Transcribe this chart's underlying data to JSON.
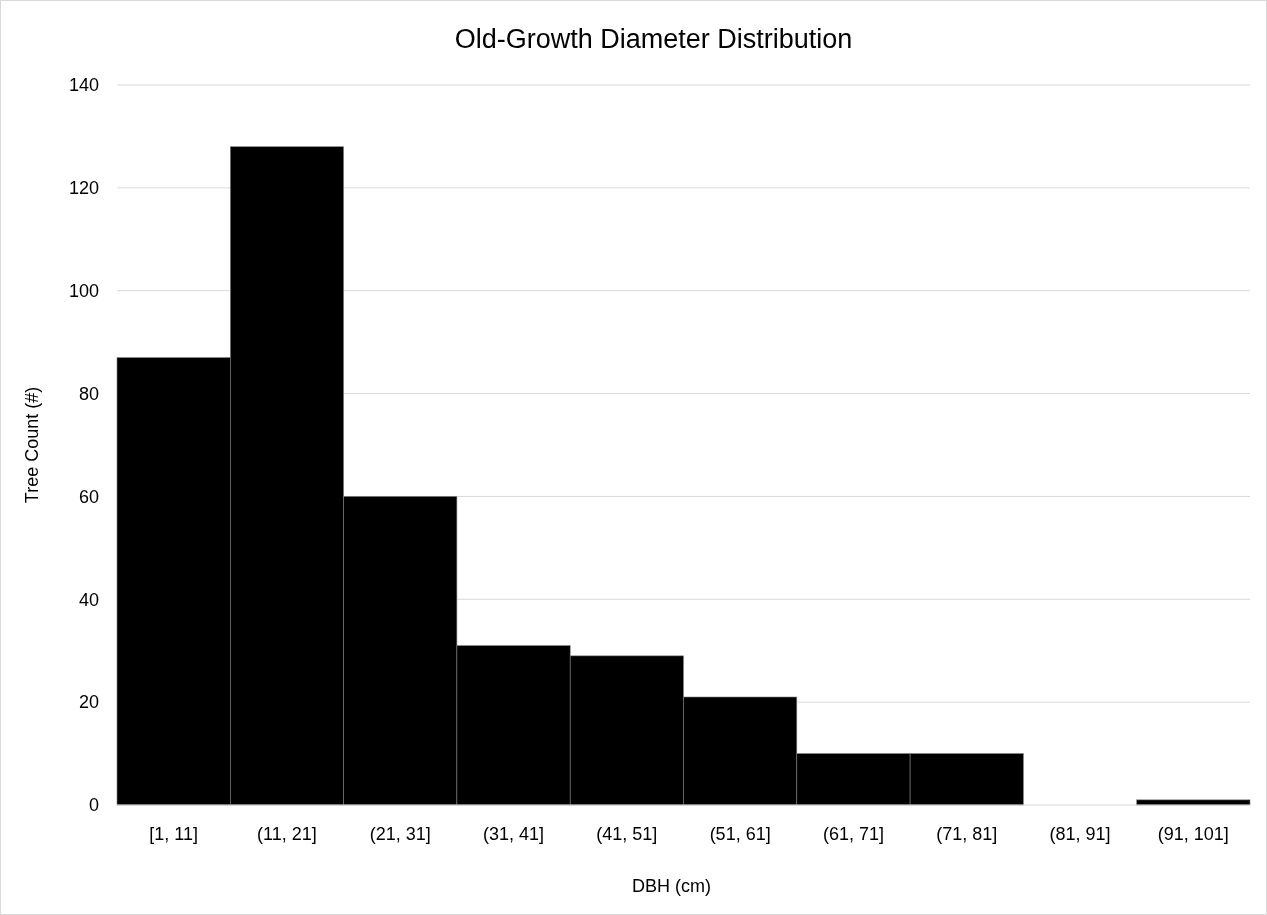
{
  "chart_data": {
    "type": "bar",
    "title": "Old-Growth Diameter Distribution",
    "xlabel": "DBH (cm)",
    "ylabel": "Tree Count (#)",
    "categories": [
      "[1, 11]",
      "(11, 21]",
      "(21, 31]",
      "(31, 41]",
      "(41, 51]",
      "(51, 61]",
      "(61, 71]",
      "(71, 81]",
      "(81, 91]",
      "(91, 101]"
    ],
    "values": [
      87,
      128,
      60,
      31,
      29,
      21,
      10,
      10,
      0,
      1
    ],
    "color": "#000000",
    "ylim": [
      0,
      140
    ],
    "yticks": [
      0,
      20,
      40,
      60,
      80,
      100,
      120,
      140
    ],
    "grid": "y"
  }
}
